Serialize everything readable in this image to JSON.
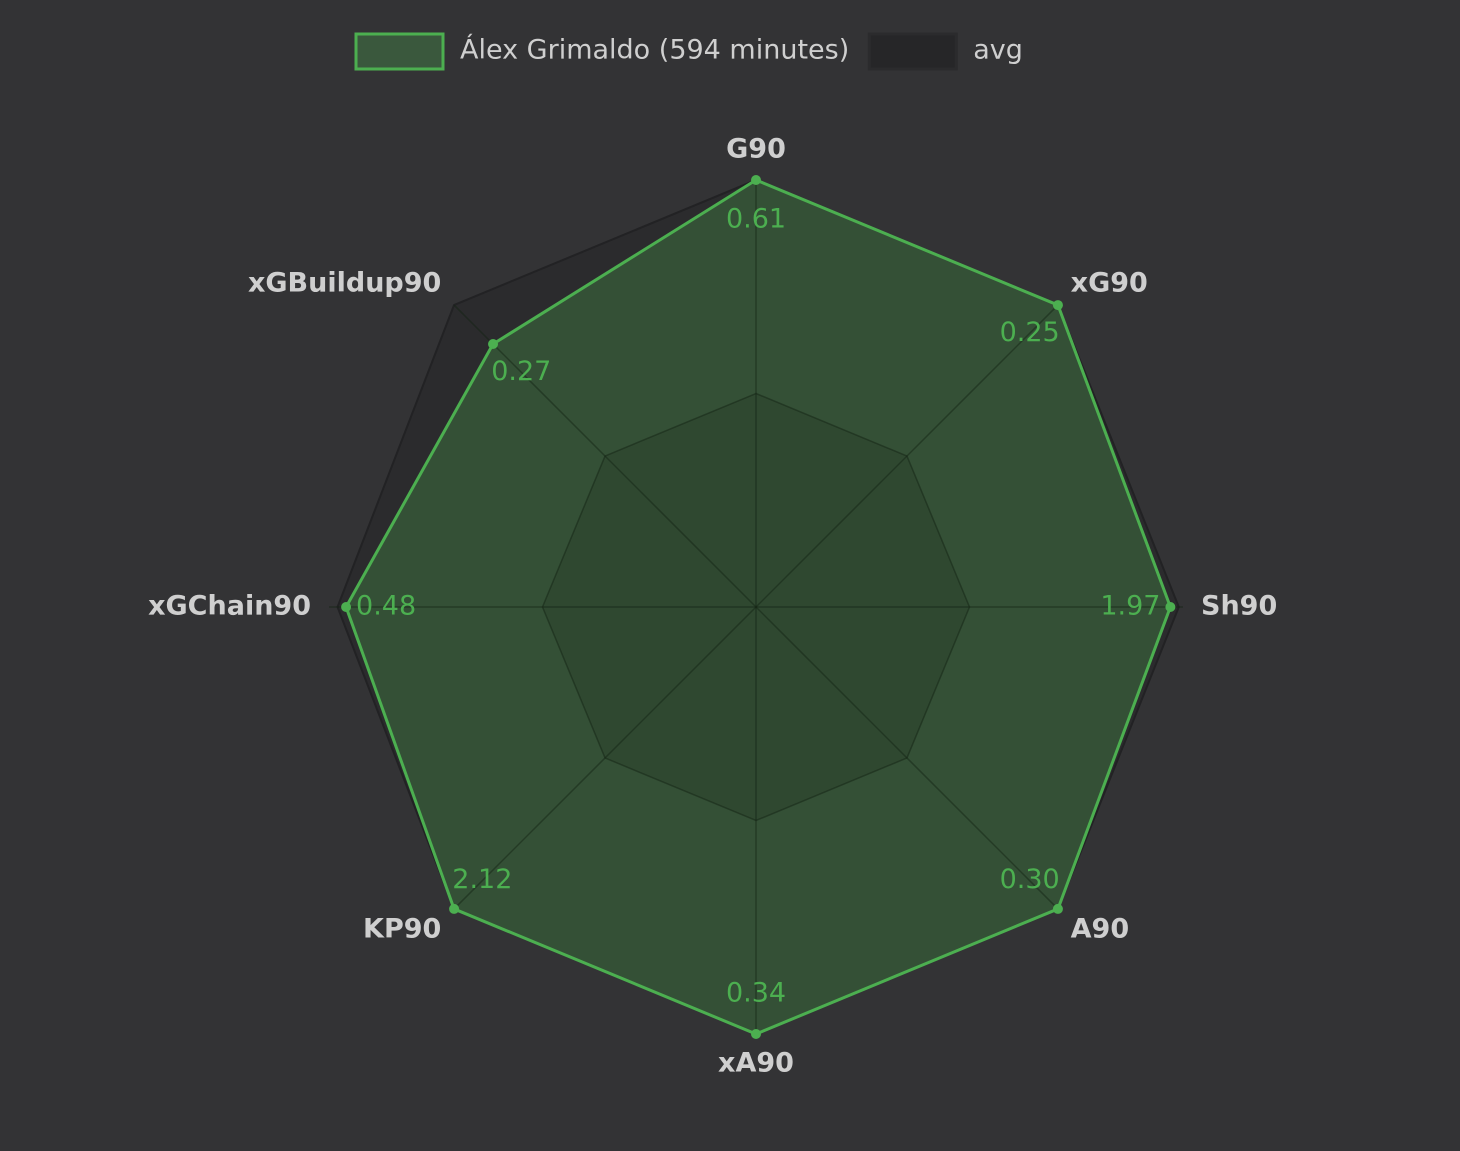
{
  "chart_data": {
    "type": "radar",
    "categories": [
      "G90",
      "xG90",
      "Sh90",
      "A90",
      "xA90",
      "KP90",
      "xGChain90",
      "xGBuildup90"
    ],
    "axis_max": [
      0.61,
      0.25,
      2.03,
      0.3,
      0.34,
      2.12,
      0.5,
      0.31
    ],
    "series": [
      {
        "name": "avg",
        "color": "#262628",
        "values": [
          0.61,
          0.25,
          2.01,
          0.3,
          0.34,
          2.12,
          0.49,
          0.31
        ]
      },
      {
        "name": "Álex Grimaldo (594 minutes)",
        "color": "#4caf50",
        "values": [
          0.61,
          0.25,
          1.97,
          0.3,
          0.34,
          2.12,
          0.48,
          0.27
        ],
        "value_labels": [
          "0.61",
          "0.25",
          "1.97",
          "0.30",
          "0.34",
          "2.12",
          "0.48",
          "0.27"
        ]
      }
    ],
    "grid": true
  }
}
